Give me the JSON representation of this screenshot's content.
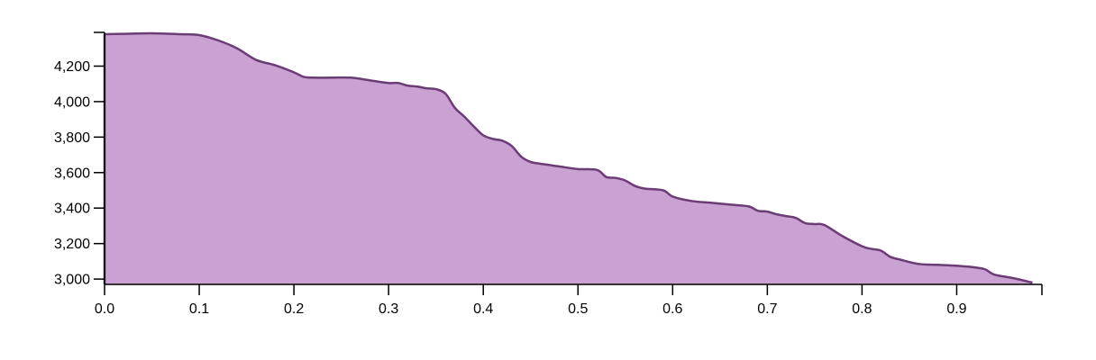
{
  "chart_data": {
    "type": "area",
    "title": "",
    "xlabel": "",
    "ylabel": "",
    "xlim": [
      0,
      0.99
    ],
    "ylim": [
      2970,
      4390
    ],
    "x_ticks": [
      {
        "value": 0.0,
        "label": "0.0"
      },
      {
        "value": 0.1,
        "label": "0.1"
      },
      {
        "value": 0.2,
        "label": "0.2"
      },
      {
        "value": 0.3,
        "label": "0.3"
      },
      {
        "value": 0.4,
        "label": "0.4"
      },
      {
        "value": 0.5,
        "label": "0.5"
      },
      {
        "value": 0.6,
        "label": "0.6"
      },
      {
        "value": 0.7,
        "label": "0.7"
      },
      {
        "value": 0.8,
        "label": "0.8"
      },
      {
        "value": 0.9,
        "label": "0.9"
      }
    ],
    "y_ticks": [
      {
        "value": 3000,
        "label": "3,000"
      },
      {
        "value": 3200,
        "label": "3,200"
      },
      {
        "value": 3400,
        "label": "3,400"
      },
      {
        "value": 3600,
        "label": "3,600"
      },
      {
        "value": 3800,
        "label": "3,800"
      },
      {
        "value": 4000,
        "label": "4,000"
      },
      {
        "value": 4200,
        "label": "4,200"
      }
    ],
    "fill_color": "#c9a1d2",
    "line_color": "#6a3d75",
    "grid": false,
    "series": [
      {
        "x": [
          0.0,
          0.02,
          0.05,
          0.08,
          0.1,
          0.12,
          0.14,
          0.16,
          0.18,
          0.2,
          0.21,
          0.22,
          0.24,
          0.26,
          0.28,
          0.3,
          0.31,
          0.32,
          0.33,
          0.34,
          0.35,
          0.36,
          0.37,
          0.38,
          0.39,
          0.4,
          0.41,
          0.42,
          0.43,
          0.44,
          0.45,
          0.46,
          0.48,
          0.5,
          0.52,
          0.53,
          0.54,
          0.55,
          0.56,
          0.57,
          0.59,
          0.6,
          0.62,
          0.64,
          0.66,
          0.68,
          0.69,
          0.7,
          0.71,
          0.72,
          0.73,
          0.74,
          0.75,
          0.76,
          0.78,
          0.8,
          0.81,
          0.82,
          0.83,
          0.84,
          0.86,
          0.88,
          0.9,
          0.92,
          0.93,
          0.94,
          0.96,
          0.98
        ],
        "y": [
          4380,
          4382,
          4385,
          4380,
          4375,
          4345,
          4300,
          4235,
          4205,
          4165,
          4140,
          4135,
          4135,
          4135,
          4120,
          4105,
          4105,
          4090,
          4085,
          4075,
          4070,
          4045,
          3965,
          3915,
          3860,
          3810,
          3790,
          3780,
          3750,
          3690,
          3660,
          3650,
          3635,
          3620,
          3615,
          3575,
          3570,
          3555,
          3525,
          3510,
          3500,
          3465,
          3440,
          3430,
          3420,
          3410,
          3385,
          3380,
          3365,
          3355,
          3345,
          3315,
          3310,
          3305,
          3240,
          3185,
          3170,
          3160,
          3125,
          3110,
          3085,
          3080,
          3075,
          3065,
          3055,
          3025,
          3005,
          2980
        ]
      }
    ]
  }
}
